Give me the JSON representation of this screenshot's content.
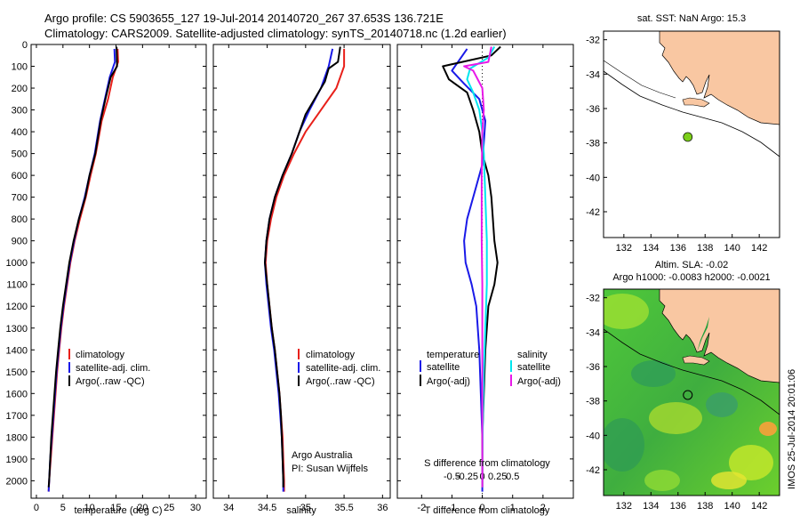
{
  "title": {
    "line1": "Argo profile: CS 5903655_127 19-Jul-2014 20140720_267 37.653S 136.721E",
    "line2": "Climatology: CARS2009. Satellite-adjusted climatology: synTS_20140718.nc (1.2d earlier)"
  },
  "colors": {
    "climatology": "#e8201a",
    "satellite": "#1a1ae8",
    "argo": "#000000",
    "cyan": "#00e6ef",
    "magenta": "#e81ae8",
    "land": "#f9c7a2"
  },
  "chart_data": [
    {
      "type": "line",
      "xlabel": "temperature (deg C)",
      "xlim": [
        -1,
        32
      ],
      "ylim": [
        0,
        2080
      ],
      "xticks": [
        0,
        5,
        10,
        15,
        20,
        25,
        30
      ],
      "yticks": [
        0,
        100,
        200,
        300,
        400,
        500,
        600,
        700,
        800,
        900,
        1000,
        1100,
        1200,
        1300,
        1400,
        1500,
        1600,
        1700,
        1800,
        1900,
        2000
      ],
      "legend": [
        "climatology",
        "satellite-adj. clim.",
        "Argo(..raw -QC)"
      ],
      "series": [
        {
          "name": "climatology",
          "color": "#e8201a",
          "points": [
            [
              15.3,
              20
            ],
            [
              15.4,
              80
            ],
            [
              14.4,
              150
            ],
            [
              13.5,
              250
            ],
            [
              12.3,
              350
            ],
            [
              11.2,
              500
            ],
            [
              10.2,
              600
            ],
            [
              9.3,
              700
            ],
            [
              8.2,
              800
            ],
            [
              7.2,
              900
            ],
            [
              6.4,
              1000
            ],
            [
              5.8,
              1100
            ],
            [
              5.2,
              1200
            ],
            [
              4.7,
              1300
            ],
            [
              4.3,
              1400
            ],
            [
              3.9,
              1500
            ],
            [
              3.6,
              1600
            ],
            [
              3.3,
              1700
            ],
            [
              3.0,
              1800
            ],
            [
              2.7,
              1900
            ],
            [
              2.4,
              2000
            ],
            [
              2.3,
              2050
            ]
          ]
        },
        {
          "name": "satellite-adj. clim.",
          "color": "#1a1ae8",
          "points": [
            [
              14.7,
              20
            ],
            [
              14.8,
              80
            ],
            [
              13.8,
              150
            ],
            [
              12.9,
              250
            ],
            [
              12.0,
              350
            ],
            [
              11.0,
              500
            ],
            [
              10.0,
              600
            ],
            [
              9.1,
              700
            ],
            [
              8.0,
              800
            ],
            [
              7.1,
              900
            ],
            [
              6.3,
              1000
            ],
            [
              5.7,
              1100
            ],
            [
              5.1,
              1200
            ],
            [
              4.6,
              1300
            ],
            [
              4.2,
              1400
            ],
            [
              3.8,
              1500
            ],
            [
              3.5,
              1600
            ],
            [
              3.2,
              1700
            ],
            [
              2.9,
              1800
            ],
            [
              2.6,
              1900
            ],
            [
              2.4,
              2000
            ],
            [
              2.3,
              2050
            ]
          ]
        },
        {
          "name": "Argo(..raw -QC)",
          "color": "#000000",
          "points": [
            [
              15.1,
              10
            ],
            [
              15.2,
              100
            ],
            [
              14.0,
              150
            ],
            [
              13.0,
              250
            ],
            [
              12.1,
              350
            ],
            [
              11.1,
              500
            ],
            [
              10.0,
              600
            ],
            [
              9.2,
              700
            ],
            [
              8.0,
              800
            ],
            [
              7.0,
              900
            ],
            [
              6.2,
              1000
            ],
            [
              5.6,
              1100
            ],
            [
              5.0,
              1200
            ],
            [
              4.5,
              1300
            ],
            [
              4.1,
              1400
            ],
            [
              3.7,
              1500
            ],
            [
              3.4,
              1600
            ],
            [
              3.1,
              1700
            ],
            [
              2.8,
              1800
            ],
            [
              2.6,
              1900
            ],
            [
              2.4,
              2000
            ],
            [
              2.3,
              2030
            ]
          ]
        }
      ]
    },
    {
      "type": "line",
      "xlabel": "salinity",
      "xlim": [
        33.8,
        36.1
      ],
      "ylim": [
        0,
        2080
      ],
      "xticks": [
        34,
        34.5,
        35,
        35.5,
        36
      ],
      "legend": [
        "climatology",
        "satellite-adj. clim.",
        "Argo(..raw -QC)"
      ],
      "annotations": [
        "Argo Australia",
        "PI: Susan Wijffels"
      ],
      "series": [
        {
          "name": "climatology",
          "color": "#e8201a",
          "points": [
            [
              35.5,
              20
            ],
            [
              35.5,
              100
            ],
            [
              35.4,
              200
            ],
            [
              35.2,
              300
            ],
            [
              35.0,
              400
            ],
            [
              34.85,
              500
            ],
            [
              34.72,
              600
            ],
            [
              34.62,
              700
            ],
            [
              34.55,
              800
            ],
            [
              34.5,
              900
            ],
            [
              34.48,
              1000
            ],
            [
              34.5,
              1100
            ],
            [
              34.53,
              1200
            ],
            [
              34.56,
              1300
            ],
            [
              34.6,
              1400
            ],
            [
              34.63,
              1500
            ],
            [
              34.66,
              1600
            ],
            [
              34.68,
              1700
            ],
            [
              34.7,
              1800
            ],
            [
              34.71,
              1900
            ],
            [
              34.72,
              2000
            ],
            [
              34.72,
              2050
            ]
          ]
        },
        {
          "name": "satellite-adj. clim.",
          "color": "#1a1ae8",
          "points": [
            [
              35.35,
              20
            ],
            [
              35.3,
              100
            ],
            [
              35.2,
              200
            ],
            [
              35.05,
              300
            ],
            [
              34.92,
              400
            ],
            [
              34.82,
              500
            ],
            [
              34.7,
              600
            ],
            [
              34.6,
              700
            ],
            [
              34.53,
              800
            ],
            [
              34.49,
              900
            ],
            [
              34.47,
              1000
            ],
            [
              34.49,
              1100
            ],
            [
              34.52,
              1200
            ],
            [
              34.55,
              1300
            ],
            [
              34.59,
              1400
            ],
            [
              34.62,
              1500
            ],
            [
              34.65,
              1600
            ],
            [
              34.67,
              1700
            ],
            [
              34.69,
              1800
            ],
            [
              34.7,
              1900
            ],
            [
              34.71,
              2000
            ],
            [
              34.71,
              2050
            ]
          ]
        },
        {
          "name": "Argo(..raw -QC)",
          "color": "#000000",
          "points": [
            [
              35.45,
              10
            ],
            [
              35.42,
              80
            ],
            [
              35.3,
              110
            ],
            [
              35.25,
              170
            ],
            [
              35.15,
              230
            ],
            [
              35.0,
              320
            ],
            [
              34.9,
              420
            ],
            [
              34.82,
              500
            ],
            [
              34.7,
              600
            ],
            [
              34.6,
              700
            ],
            [
              34.53,
              800
            ],
            [
              34.49,
              900
            ],
            [
              34.47,
              1000
            ],
            [
              34.5,
              1100
            ],
            [
              34.53,
              1200
            ],
            [
              34.56,
              1300
            ],
            [
              34.6,
              1400
            ],
            [
              34.63,
              1500
            ],
            [
              34.66,
              1600
            ],
            [
              34.68,
              1700
            ],
            [
              34.69,
              1800
            ],
            [
              34.7,
              1900
            ],
            [
              34.71,
              2000
            ],
            [
              34.71,
              2030
            ]
          ]
        }
      ]
    },
    {
      "type": "line",
      "xlabel": "T difference from climatology",
      "top_xlabel": "S difference from climatology",
      "xlim": [
        -2.8,
        3.0
      ],
      "ylim": [
        0,
        2080
      ],
      "xticks": [
        -2,
        -1,
        0,
        1,
        2
      ],
      "top_tick_values": [
        -1,
        -0.5,
        0,
        0.5,
        1
      ],
      "top_tick_labels": [
        "-0.5",
        "-0.25",
        "0",
        "0.25",
        "0.5"
      ],
      "legend_groups": [
        {
          "heading": "temperature",
          "items": [
            {
              "label": "satellite",
              "color": "#1a1ae8"
            },
            {
              "label": "Argo(-adj)",
              "color": "#000000"
            }
          ]
        },
        {
          "heading": "salinity",
          "items": [
            {
              "label": "satellite",
              "color": "#00e6ef"
            },
            {
              "label": "Argo(-adj)",
              "color": "#e81ae8"
            }
          ]
        }
      ],
      "series": [
        {
          "name": "temperature satellite",
          "color": "#1a1ae8",
          "points": [
            [
              -0.5,
              20
            ],
            [
              -0.7,
              60
            ],
            [
              -1.0,
              120
            ],
            [
              -0.6,
              180
            ],
            [
              -0.1,
              250
            ],
            [
              0.1,
              350
            ],
            [
              0.05,
              450
            ],
            [
              0.0,
              550
            ],
            [
              -0.2,
              650
            ],
            [
              -0.5,
              800
            ],
            [
              -0.6,
              900
            ],
            [
              -0.55,
              1000
            ],
            [
              -0.35,
              1100
            ],
            [
              -0.2,
              1200
            ],
            [
              -0.1,
              1400
            ],
            [
              -0.05,
              1600
            ],
            [
              0.0,
              1800
            ],
            [
              0.0,
              2000
            ],
            [
              0.0,
              2050
            ]
          ]
        },
        {
          "name": "temperature Argo(-adj)",
          "color": "#000000",
          "points": [
            [
              0.6,
              10
            ],
            [
              0.3,
              50
            ],
            [
              -1.3,
              100
            ],
            [
              -1.1,
              160
            ],
            [
              -0.5,
              220
            ],
            [
              -0.3,
              300
            ],
            [
              -0.1,
              400
            ],
            [
              0.0,
              500
            ],
            [
              0.2,
              600
            ],
            [
              0.3,
              700
            ],
            [
              0.4,
              900
            ],
            [
              0.5,
              1000
            ],
            [
              0.4,
              1100
            ],
            [
              0.2,
              1200
            ],
            [
              0.1,
              1400
            ],
            [
              0.05,
              1600
            ],
            [
              0.0,
              1800
            ],
            [
              0.0,
              2000
            ],
            [
              0.0,
              2030
            ]
          ]
        },
        {
          "name": "salinity satellite",
          "color": "#00e6ef",
          "points": [
            [
              0.4,
              10
            ],
            [
              0.2,
              60
            ],
            [
              -0.4,
              110
            ],
            [
              -0.5,
              160
            ],
            [
              -0.3,
              220
            ],
            [
              -0.1,
              300
            ],
            [
              0.0,
              400
            ],
            [
              0.05,
              500
            ],
            [
              0.1,
              700
            ],
            [
              0.15,
              900
            ],
            [
              0.15,
              1100
            ],
            [
              0.1,
              1300
            ],
            [
              0.05,
              1500
            ],
            [
              0.02,
              1700
            ],
            [
              0.0,
              1900
            ],
            [
              0.0,
              2030
            ]
          ]
        },
        {
          "name": "salinity Argo(-adj)",
          "color": "#e81ae8",
          "points": [
            [
              0.3,
              10
            ],
            [
              0.2,
              80
            ],
            [
              -0.6,
              100
            ],
            [
              -0.3,
              120
            ],
            [
              0.0,
              200
            ],
            [
              0.05,
              300
            ],
            [
              0.0,
              400
            ],
            [
              -0.02,
              600
            ],
            [
              -0.02,
              900
            ],
            [
              0.0,
              1100
            ],
            [
              0.0,
              1400
            ],
            [
              0.0,
              1700
            ],
            [
              0.0,
              2030
            ]
          ]
        }
      ]
    }
  ],
  "map_top": {
    "title": "sat. SST: NaN Argo: 15.3",
    "lon_ticks": [
      132,
      134,
      136,
      138,
      140,
      142
    ],
    "lat_ticks": [
      -32,
      -34,
      -36,
      -38,
      -40,
      -42
    ],
    "lon_range": [
      130.5,
      143.5
    ],
    "lat_range": [
      -43.5,
      -31.5
    ],
    "argo_position": [
      136.721,
      -37.653
    ],
    "marker_color": "#7ccf1a"
  },
  "map_bottom": {
    "title_line1": "Altim. SLA: -0.02",
    "title_line2": "Argo h1000: -0.0083 h2000: -0.0021",
    "lon_ticks": [
      132,
      134,
      136,
      138,
      140,
      142
    ],
    "lat_ticks": [
      -32,
      -34,
      -36,
      -38,
      -40,
      -42
    ],
    "lon_range": [
      130.5,
      143.5
    ],
    "lat_range": [
      -43.5,
      -31.5
    ],
    "argo_position": [
      136.721,
      -37.653
    ]
  },
  "footer": "IMOS 25-Jul-2014 20:01:06"
}
